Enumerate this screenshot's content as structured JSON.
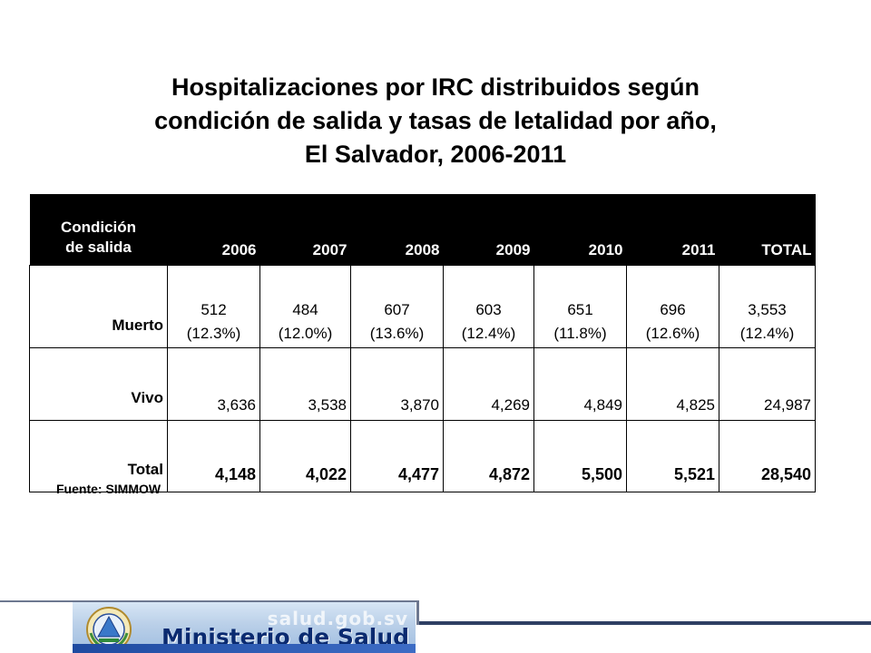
{
  "title_lines": [
    "Hospitalizaciones por IRC distribuidos según",
    "condición de salida y tasas de letalidad por año,",
    "El Salvador, 2006-2011"
  ],
  "table": {
    "header": {
      "label_line1": "Condición",
      "label_line2": "de salida",
      "columns": [
        "2006",
        "2007",
        "2008",
        "2009",
        "2010",
        "2011",
        "TOTAL"
      ]
    },
    "rows": {
      "muerto": {
        "label": "Muerto",
        "values": [
          "512",
          "484",
          "607",
          "603",
          "651",
          "696",
          "3,553"
        ],
        "pcts": [
          "(12.3%)",
          "(12.0%)",
          "(13.6%)",
          "(12.4%)",
          "(11.8%)",
          "(12.6%)",
          "(12.4%)"
        ]
      },
      "vivo": {
        "label": "Vivo",
        "values": [
          "3,636",
          "3,538",
          "3,870",
          "4,269",
          "4,849",
          "4,825",
          "24,987"
        ]
      },
      "total": {
        "label": "Total",
        "values": [
          "4,148",
          "4,022",
          "4,477",
          "4,872",
          "5,500",
          "5,521",
          "28,540"
        ]
      }
    }
  },
  "source": "Fuente: SIMMOW",
  "footer": {
    "url": "salud.gob.sv",
    "ministry": "Ministerio de Salud"
  }
}
